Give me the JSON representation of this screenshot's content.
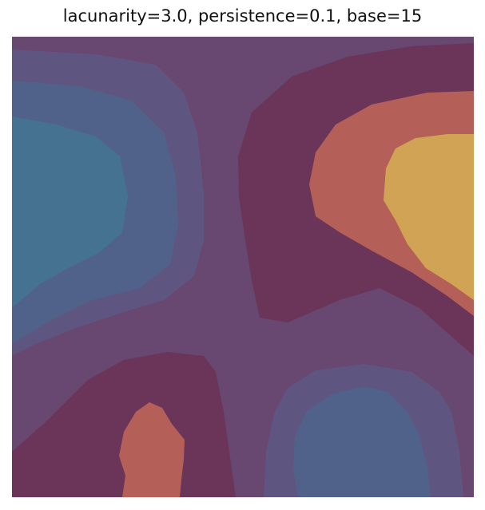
{
  "chart_data": {
    "type": "heatmap",
    "title": "lacunarity=3.0, persistence=0.1, base=15",
    "xlabel": "",
    "ylabel": "",
    "axes_visible": false,
    "grid": false,
    "legend": "none",
    "colormap": "twilight-like filled contour",
    "levels": [
      {
        "index": 0,
        "color": "#467291"
      },
      {
        "index": 1,
        "color": "#51628a"
      },
      {
        "index": 2,
        "color": "#5e5680"
      },
      {
        "index": 3,
        "color": "#684770"
      },
      {
        "index": 4,
        "color": "#6a3559"
      },
      {
        "index": 5,
        "color": "#b45f57"
      },
      {
        "index": 6,
        "color": "#d1a455"
      }
    ],
    "regions": [
      {
        "name": "upper-left low",
        "peak_level": 0
      },
      {
        "name": "upper-right high",
        "peak_level": 6
      },
      {
        "name": "lower-left high",
        "peak_level": 5
      },
      {
        "name": "lower-right low",
        "peak_level": 1
      }
    ]
  }
}
